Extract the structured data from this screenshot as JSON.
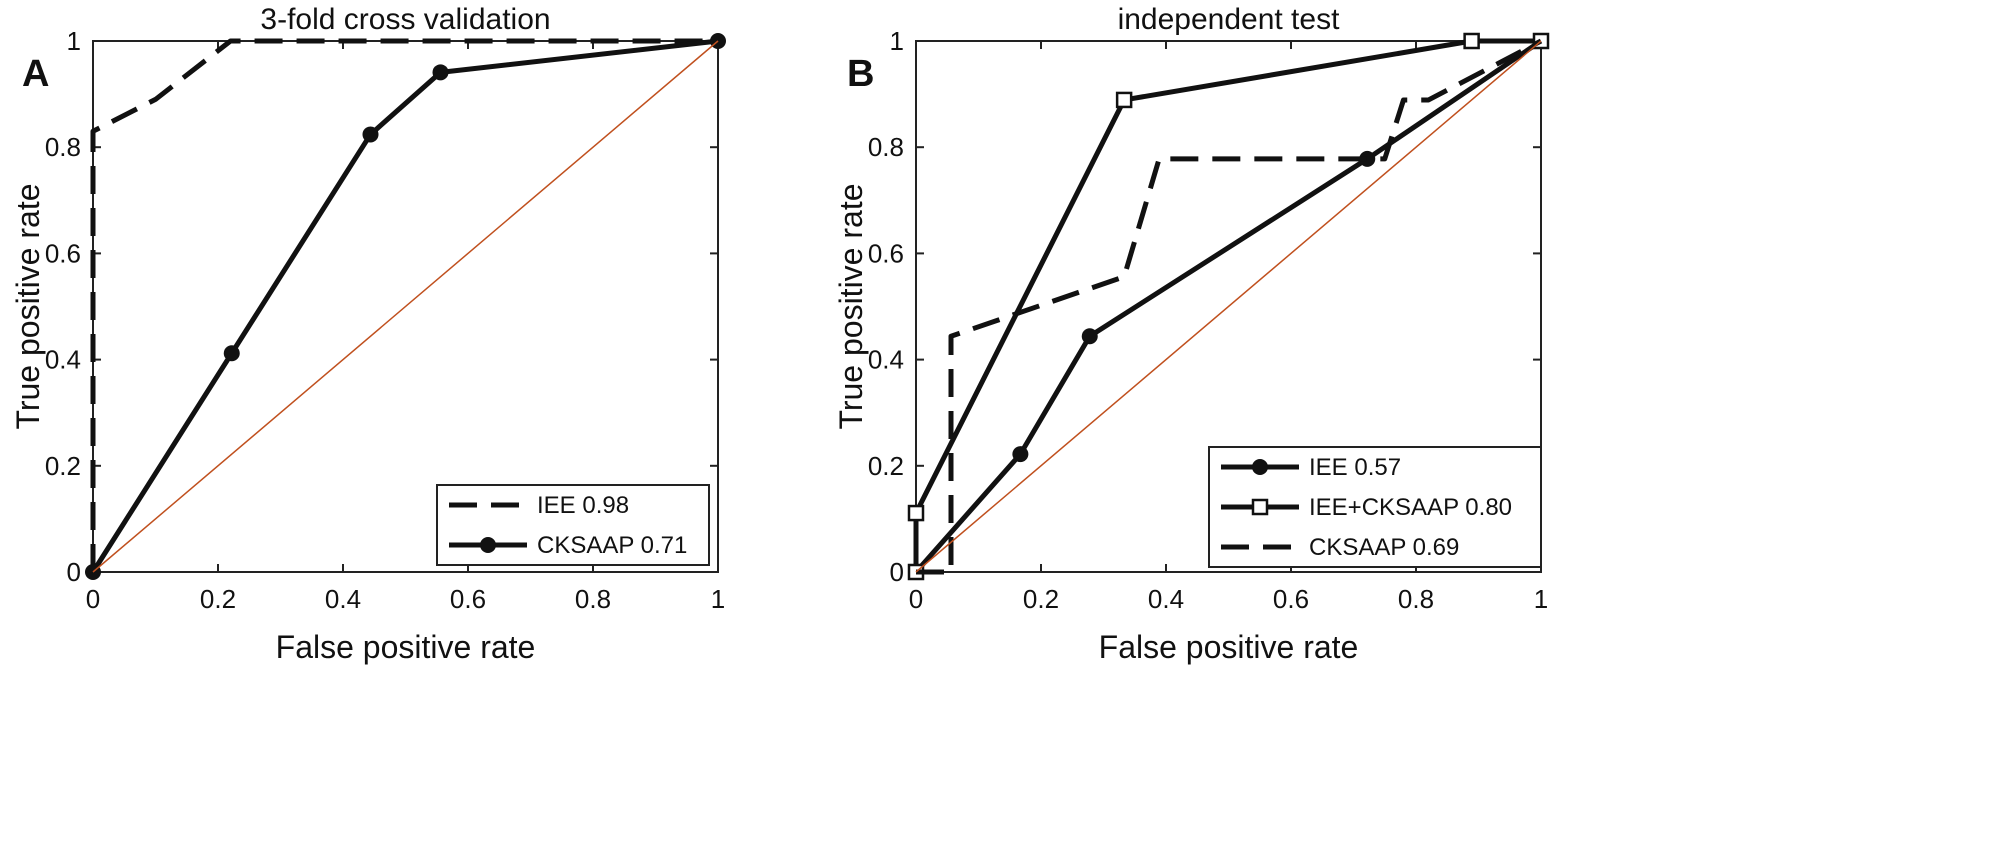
{
  "chart_data": [
    {
      "panel": "A",
      "type": "line",
      "title": "3-fold cross validation",
      "xlabel": "False positive rate",
      "ylabel": "True positive rate",
      "xlim": [
        0,
        1
      ],
      "ylim": [
        0,
        1
      ],
      "xticks": [
        "0",
        "0.2",
        "0.4",
        "0.6",
        "0.8",
        "1"
      ],
      "yticks": [
        "0",
        "0.2",
        "0.4",
        "0.6",
        "0.8",
        "1"
      ],
      "legend_position": "bottom-right",
      "series": [
        {
          "name": "IEE 0.98",
          "style": "dashed",
          "marker": "none",
          "x": [
            0,
            0,
            0.1,
            0.22,
            1
          ],
          "y": [
            0,
            0.83,
            0.89,
            1,
            1
          ]
        },
        {
          "name": "CKSAAP 0.71",
          "style": "solid",
          "marker": "circle",
          "x": [
            0,
            0.222,
            0.444,
            0.556,
            1
          ],
          "y": [
            0,
            0.412,
            0.824,
            0.941,
            1
          ]
        },
        {
          "name": "",
          "style": "diagonal",
          "color": "#c0501e",
          "x": [
            0,
            1
          ],
          "y": [
            0,
            1
          ]
        }
      ]
    },
    {
      "panel": "B",
      "type": "line",
      "title": "independent test",
      "xlabel": "False positive rate",
      "ylabel": "True positive rate",
      "xlim": [
        0,
        1
      ],
      "ylim": [
        0,
        1
      ],
      "xticks": [
        "0",
        "0.2",
        "0.4",
        "0.6",
        "0.8",
        "1"
      ],
      "yticks": [
        "0",
        "0.2",
        "0.4",
        "0.6",
        "0.8",
        "1"
      ],
      "legend_position": "bottom-right",
      "series": [
        {
          "name": "IEE 0.57",
          "style": "solid",
          "marker": "circle",
          "x": [
            0,
            0.167,
            0.278,
            0.722,
            1
          ],
          "y": [
            0,
            0.222,
            0.444,
            0.778,
            1
          ]
        },
        {
          "name": "IEE+CKSAAP 0.80",
          "style": "solid",
          "marker": "square",
          "x": [
            0,
            0,
            0.333,
            0.889,
            1
          ],
          "y": [
            0,
            0.111,
            0.889,
            1,
            1
          ]
        },
        {
          "name": "CKSAAP 0.69",
          "style": "dashed",
          "marker": "none",
          "x": [
            0,
            0.056,
            0.056,
            0.333,
            0.389,
            0.75,
            0.78,
            0.82,
            1
          ],
          "y": [
            0,
            0,
            0.444,
            0.556,
            0.778,
            0.778,
            0.889,
            0.889,
            1
          ]
        },
        {
          "name": "",
          "style": "diagonal",
          "color": "#c0501e",
          "x": [
            0,
            1
          ],
          "y": [
            0,
            1
          ]
        }
      ]
    }
  ]
}
